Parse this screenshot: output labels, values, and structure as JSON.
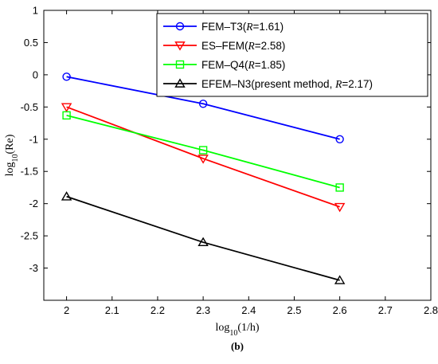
{
  "chart_data": {
    "type": "line",
    "xlim": [
      1.95,
      2.8
    ],
    "ylim": [
      -3.5,
      1
    ],
    "xticks": [
      "2",
      "2.1",
      "2.2",
      "2.3",
      "2.4",
      "2.5",
      "2.6",
      "2.7",
      "2.8"
    ],
    "yticks": [
      "1",
      "0.5",
      "0",
      "-0.5",
      "-1",
      "-1.5",
      "-2",
      "-2.5",
      "-3"
    ],
    "xlabel": {
      "prefix": "log",
      "sub": "10",
      "suffix": "(1/h)"
    },
    "ylabel": {
      "prefix": "log",
      "sub": "10",
      "suffix": "(Re)"
    },
    "panel_label": "(b)",
    "grid": false,
    "legend_position": "top-right",
    "series": [
      {
        "name": "FEM–T3(R=1.61)",
        "name_parts": [
          "FEM–T3(",
          "R",
          "=1.61)"
        ],
        "color": "#0000ff",
        "marker": "circle",
        "x": [
          2.0,
          2.3,
          2.6
        ],
        "y": [
          -0.03,
          -0.45,
          -1.0
        ]
      },
      {
        "name": "ES–FEM(R=2.58)",
        "name_parts": [
          "ES–FEM(",
          "R",
          "=2.58)"
        ],
        "color": "#ff0000",
        "marker": "triangle-down",
        "x": [
          2.0,
          2.3,
          2.6
        ],
        "y": [
          -0.5,
          -1.3,
          -2.05
        ]
      },
      {
        "name": "FEM–Q4(R=1.85)",
        "name_parts": [
          "FEM–Q4(",
          "R",
          "=1.85)"
        ],
        "color": "#00ff00",
        "marker": "square",
        "x": [
          2.0,
          2.3,
          2.6
        ],
        "y": [
          -0.63,
          -1.17,
          -1.75
        ]
      },
      {
        "name": "EFEM–N3(present method, R=2.17)",
        "name_parts": [
          "EFEM–N3(present method, ",
          "R",
          "=2.17)"
        ],
        "color": "#000000",
        "marker": "triangle-up",
        "x": [
          2.0,
          2.3,
          2.6
        ],
        "y": [
          -1.89,
          -2.6,
          -3.19
        ]
      }
    ]
  }
}
